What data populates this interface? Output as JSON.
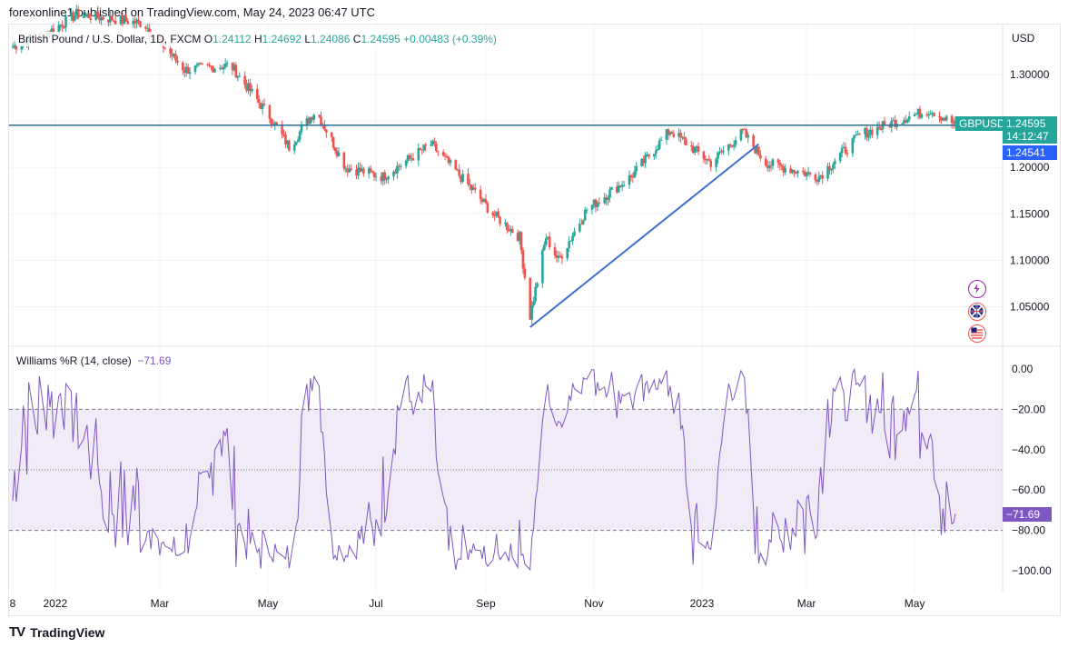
{
  "header": {
    "publisher": "forexonline1 published on TradingView.com, May 24, 2023 06:47 UTC"
  },
  "legend": {
    "symbol": "British Pound / U.S. Dollar, 1D, FXCM",
    "o_label": "O",
    "o": "1.24112",
    "h_label": "H",
    "h": "1.24692",
    "l_label": "L",
    "l": "1.24086",
    "c_label": "C",
    "c": "1.24595",
    "change": "+0.00483 (+0.39%)"
  },
  "price_axis": {
    "currency": "USD",
    "ticks": [
      "1.30000",
      "1.25000",
      "1.20000",
      "1.15000",
      "1.10000",
      "1.05000"
    ]
  },
  "price_labels": {
    "symbol_tag": "GBPUSD",
    "last": "1.24595",
    "countdown": "14:12:47",
    "line_level": "1.24541"
  },
  "indicator": {
    "name": "Williams %R (14, close)",
    "value": "−71.69",
    "ticks": [
      "0.00",
      "−20.00",
      "−40.00",
      "−60.00",
      "−80.00",
      "−100.00"
    ],
    "value_tag": "−71.69"
  },
  "time_axis": [
    "8",
    "2022",
    "Mar",
    "May",
    "Jul",
    "Sep",
    "Nov",
    "2023",
    "Mar",
    "May"
  ],
  "footer": {
    "brand": "TradingView",
    "logo": "TV"
  },
  "colors": {
    "up": "#26a69a",
    "down": "#ef5350",
    "hline": "#2a6f97",
    "trend": "#3d6fd1",
    "wr_line": "#7e57c2",
    "wr_band": "#ede7f6"
  },
  "chart_data": [
    {
      "type": "candlestick",
      "title": "British Pound / U.S. Dollar, 1D, FXCM",
      "x": [
        "2021-11",
        "2022-01",
        "2022-03",
        "2022-05",
        "2022-07",
        "2022-09",
        "2022-11",
        "2023-01",
        "2023-03",
        "2023-05"
      ],
      "y": [
        1.345,
        1.36,
        1.31,
        1.255,
        1.2,
        1.14,
        1.16,
        1.215,
        1.205,
        1.25
      ],
      "anchors": [
        {
          "date": "2021-12-08",
          "price": 1.33
        },
        {
          "date": "2021-12-28",
          "price": 1.345
        },
        {
          "date": "2022-01-13",
          "price": 1.365
        },
        {
          "date": "2022-02-20",
          "price": 1.355
        },
        {
          "date": "2022-03-15",
          "price": 1.305
        },
        {
          "date": "2022-04-10",
          "price": 1.31
        },
        {
          "date": "2022-05-02",
          "price": 1.255
        },
        {
          "date": "2022-05-13",
          "price": 1.222
        },
        {
          "date": "2022-05-28",
          "price": 1.262
        },
        {
          "date": "2022-06-14",
          "price": 1.2
        },
        {
          "date": "2022-07-05",
          "price": 1.19
        },
        {
          "date": "2022-08-01",
          "price": 1.225
        },
        {
          "date": "2022-08-25",
          "price": 1.175
        },
        {
          "date": "2022-09-05",
          "price": 1.15
        },
        {
          "date": "2022-09-20",
          "price": 1.125
        },
        {
          "date": "2022-09-26",
          "price": 1.04
        },
        {
          "date": "2022-10-05",
          "price": 1.125
        },
        {
          "date": "2022-10-12",
          "price": 1.1
        },
        {
          "date": "2022-10-28",
          "price": 1.155
        },
        {
          "date": "2022-11-22",
          "price": 1.19
        },
        {
          "date": "2022-12-14",
          "price": 1.24
        },
        {
          "date": "2023-01-06",
          "price": 1.205
        },
        {
          "date": "2023-01-24",
          "price": 1.238
        },
        {
          "date": "2023-02-06",
          "price": 1.205
        },
        {
          "date": "2023-03-08",
          "price": 1.19
        },
        {
          "date": "2023-03-31",
          "price": 1.235
        },
        {
          "date": "2023-04-28",
          "price": 1.255
        },
        {
          "date": "2023-05-10",
          "price": 1.262
        },
        {
          "date": "2023-05-24",
          "price": 1.246
        }
      ],
      "horizontal_line": 1.2454,
      "trendline": [
        {
          "date": "2022-09-26",
          "price": 1.028
        },
        {
          "date": "2023-02-02",
          "price": 1.225
        }
      ],
      "last_close": 1.24595,
      "ylim": [
        1.015,
        1.375
      ]
    },
    {
      "type": "line",
      "title": "Williams %R (14, close)",
      "ylim": [
        -100,
        0
      ],
      "band": [
        -80,
        -20
      ],
      "midline": -50,
      "last": -71.69
    }
  ]
}
